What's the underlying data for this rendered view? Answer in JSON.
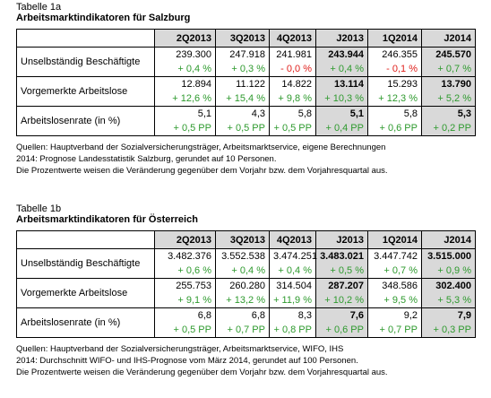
{
  "tables": [
    {
      "label": "Tabelle 1a",
      "title": "Arbeitsmarktindikatoren für Salzburg",
      "columns": [
        "2Q2013",
        "3Q2013",
        "4Q2013",
        "J2013",
        "1Q2014",
        "J2014"
      ],
      "rows": [
        {
          "name": "Unselbständig Beschäftigte",
          "values": [
            "239.300",
            "247.918",
            "241.981",
            "243.944",
            "246.355",
            "245.570"
          ],
          "changes": [
            "+ 0,4 %",
            "+ 0,3 %",
            "- 0,0 %",
            "+ 0,4 %",
            "- 0,1 %",
            "+ 0,7 %"
          ]
        },
        {
          "name": "Vorgemerkte Arbeitslose",
          "values": [
            "12.894",
            "11.122",
            "14.822",
            "13.114",
            "15.293",
            "13.790"
          ],
          "changes": [
            "+ 12,6 %",
            "+ 15,4 %",
            "+ 9,8 %",
            "+ 10,3 %",
            "+ 12,3 %",
            "+ 5,2 %"
          ]
        },
        {
          "name": "Arbeitslosenrate (in %)",
          "values": [
            "5,1",
            "4,3",
            "5,8",
            "5,1",
            "5,8",
            "5,3"
          ],
          "changes": [
            "+ 0,5 PP",
            "+ 0,5 PP",
            "+ 0,5 PP",
            "+ 0,4 PP",
            "+ 0,6 PP",
            "+ 0,2 PP"
          ]
        }
      ],
      "notes": [
        "Quellen: Hauptverband der Sozialversicherungsträger, Arbeitsmarktservice, eigene Berechnungen",
        "2014: Prognose Landesstatistik Salzburg, gerundet auf 10 Personen.",
        "Die Prozentwerte weisen die Veränderung gegenüber dem Vorjahr bzw. dem Vorjahresquartal aus."
      ]
    },
    {
      "label": "Tabelle 1b",
      "title": "Arbeitsmarktindikatoren für Österreich",
      "columns": [
        "2Q2013",
        "3Q2013",
        "4Q2013",
        "J2013",
        "1Q2014",
        "J2014"
      ],
      "rows": [
        {
          "name": "Unselbständig Beschäftigte",
          "values": [
            "3.482.376",
            "3.552.538",
            "3.474.251",
            "3.483.021",
            "3.447.742",
            "3.515.000"
          ],
          "changes": [
            "+ 0,6 %",
            "+ 0,4 %",
            "+ 0,4 %",
            "+ 0,5 %",
            "+ 0,7 %",
            "+ 0,9 %"
          ]
        },
        {
          "name": "Vorgemerkte Arbeitslose",
          "values": [
            "255.753",
            "260.280",
            "314.504",
            "287.207",
            "348.586",
            "302.400"
          ],
          "changes": [
            "+ 9,1 %",
            "+ 13,2 %",
            "+ 11,9 %",
            "+ 10,2 %",
            "+ 9,5 %",
            "+ 5,3 %"
          ]
        },
        {
          "name": "Arbeitslosenrate (in %)",
          "values": [
            "6,8",
            "6,8",
            "8,3",
            "7,6",
            "9,2",
            "7,9"
          ],
          "changes": [
            "+ 0,5 PP",
            "+ 0,7 PP",
            "+ 0,8 PP",
            "+ 0,6 PP",
            "+ 0,7 PP",
            "+ 0,3 PP"
          ]
        }
      ],
      "notes": [
        "Quellen: Hauptverband der Sozialversicherungsträger, Arbeitsmarktservice, WIFO, IHS",
        "2014: Durchschnitt WIFO- und IHS-Prognose vom März 2014, gerundet auf 100 Personen.",
        "Die Prozentwerte weisen die Veränderung gegenüber dem Vorjahr bzw. dem Vorjahresquartal aus."
      ]
    }
  ]
}
